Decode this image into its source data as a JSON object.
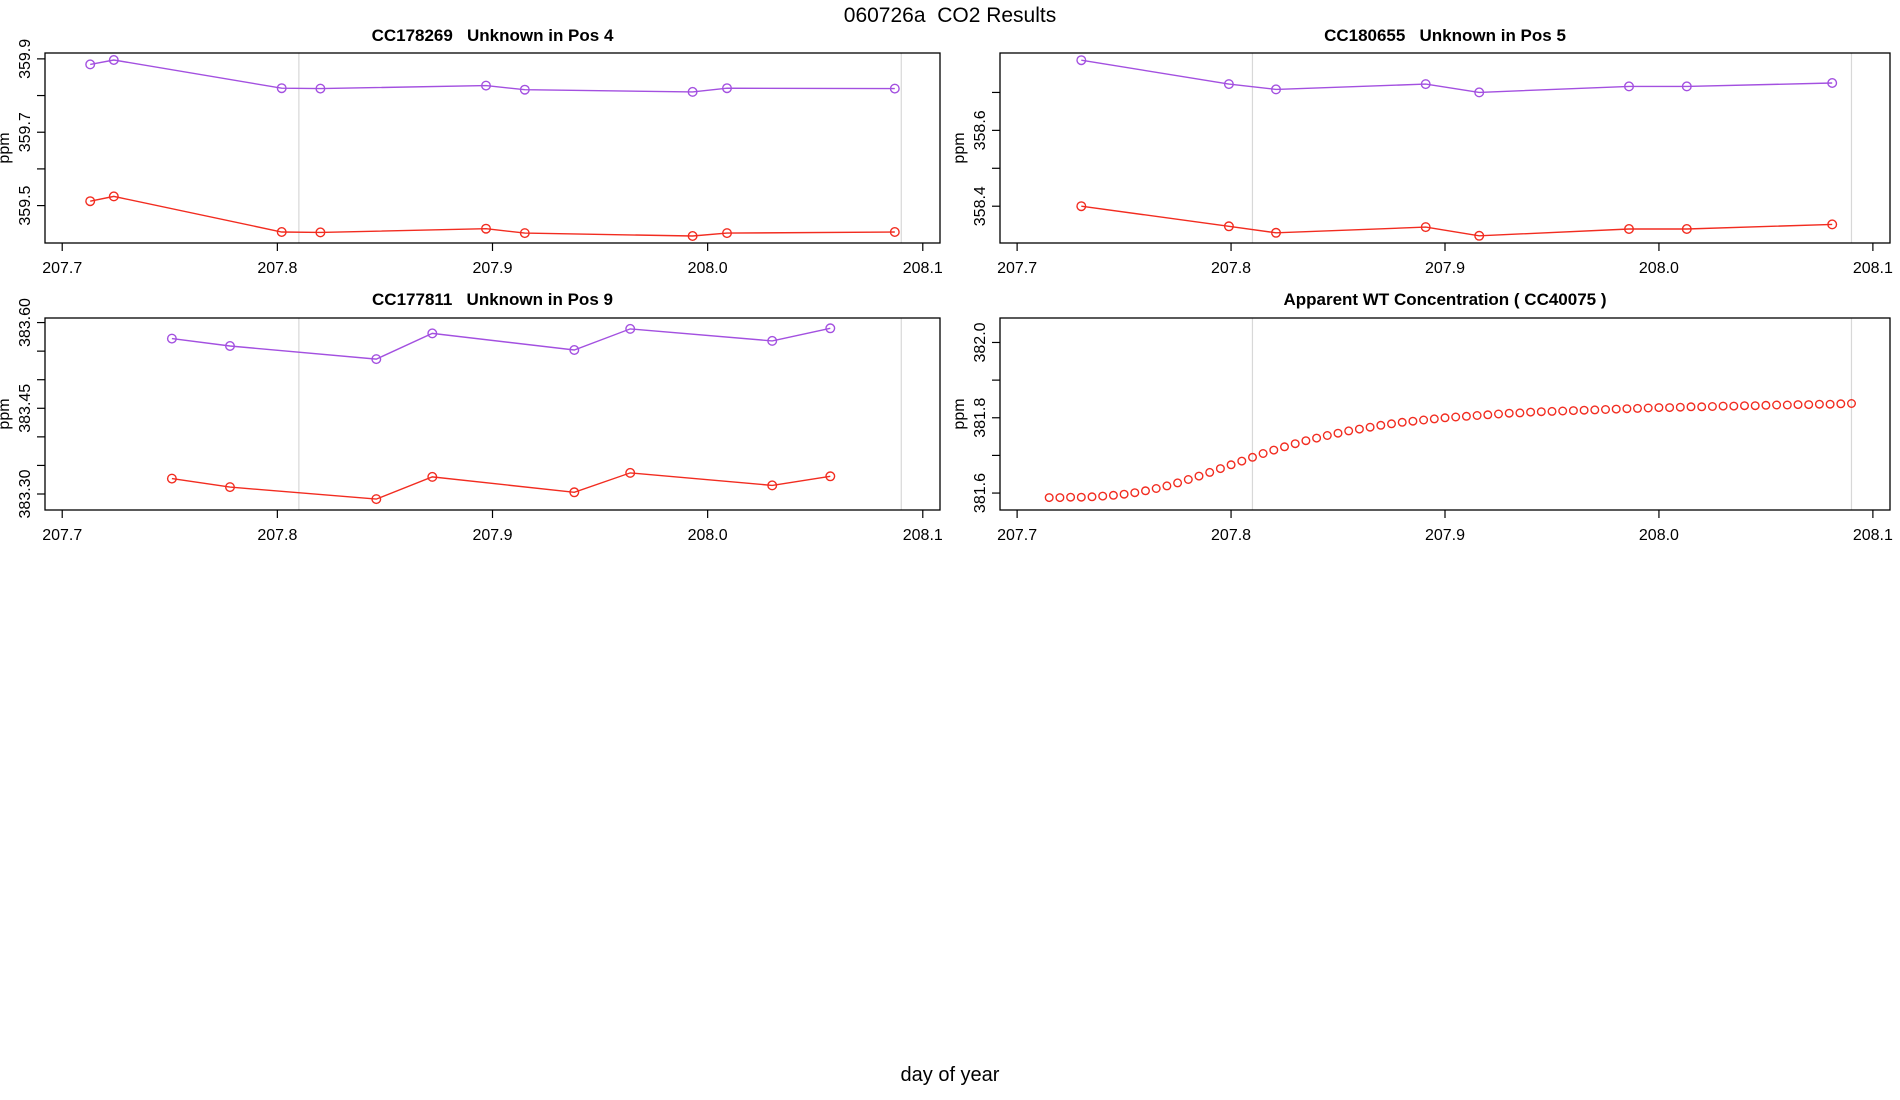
{
  "page_title": "060726a  CO2 Results",
  "xlabel": "day of year",
  "colors": {
    "reference_series": "#a350e0",
    "sample_series": "#f22c20",
    "event_line": "#d8d8d8",
    "axis": "#000000"
  },
  "chart_data": [
    {
      "type": "line",
      "title": "CC178269   Unknown in Pos 4",
      "ylabel": "ppm",
      "xlim": [
        207.692,
        208.108
      ],
      "ylim": [
        359.398,
        359.916
      ],
      "x_ticks": [
        {
          "v": 207.7,
          "label": "207.7"
        },
        {
          "v": 207.8,
          "label": "207.8"
        },
        {
          "v": 207.9,
          "label": "207.9"
        },
        {
          "v": 208.0,
          "label": "208.0"
        },
        {
          "v": 208.1,
          "label": "208.1"
        }
      ],
      "y_ticks": [
        {
          "v": 359.5,
          "label": "359.5"
        },
        {
          "v": 359.6
        },
        {
          "v": 359.7,
          "label": "359.7"
        },
        {
          "v": 359.8
        },
        {
          "v": 359.9,
          "label": "359.9"
        }
      ],
      "event_lines": [
        207.81,
        208.09
      ],
      "series": [
        {
          "color": "#a350e0",
          "draw_line": true,
          "marker": "circle",
          "points": [
            [
              207.713,
              359.885
            ],
            [
              207.724,
              359.897
            ],
            [
              207.802,
              359.82
            ],
            [
              207.82,
              359.819
            ],
            [
              207.897,
              359.827
            ],
            [
              207.915,
              359.816
            ],
            [
              207.993,
              359.81
            ],
            [
              208.009,
              359.82
            ],
            [
              208.087,
              359.819
            ]
          ]
        },
        {
          "color": "#f22c20",
          "draw_line": true,
          "marker": "circle",
          "points": [
            [
              207.713,
              359.512
            ],
            [
              207.724,
              359.525
            ],
            [
              207.802,
              359.428
            ],
            [
              207.82,
              359.427
            ],
            [
              207.897,
              359.437
            ],
            [
              207.915,
              359.425
            ],
            [
              207.993,
              359.417
            ],
            [
              208.009,
              359.425
            ],
            [
              208.087,
              359.428
            ]
          ]
        }
      ]
    },
    {
      "type": "line",
      "title": "CC180655   Unknown in Pos 5",
      "ylabel": "ppm",
      "xlim": [
        207.692,
        208.108
      ],
      "ylim": [
        358.303,
        358.804
      ],
      "x_ticks": [
        {
          "v": 207.7,
          "label": "207.7"
        },
        {
          "v": 207.8,
          "label": "207.8"
        },
        {
          "v": 207.9,
          "label": "207.9"
        },
        {
          "v": 208.0,
          "label": "208.0"
        },
        {
          "v": 208.1,
          "label": "208.1"
        }
      ],
      "y_ticks": [
        {
          "v": 358.4,
          "label": "358.4"
        },
        {
          "v": 358.5
        },
        {
          "v": 358.6,
          "label": "358.6"
        },
        {
          "v": 358.7
        }
      ],
      "event_lines": [
        207.81,
        208.09
      ],
      "series": [
        {
          "color": "#a350e0",
          "draw_line": true,
          "marker": "circle",
          "points": [
            [
              207.73,
              358.785
            ],
            [
              207.799,
              358.722
            ],
            [
              207.821,
              358.708
            ],
            [
              207.891,
              358.722
            ],
            [
              207.916,
              358.7
            ],
            [
              207.986,
              358.716
            ],
            [
              208.013,
              358.716
            ],
            [
              208.081,
              358.725
            ]
          ]
        },
        {
          "color": "#f22c20",
          "draw_line": true,
          "marker": "circle",
          "points": [
            [
              207.73,
              358.4
            ],
            [
              207.799,
              358.347
            ],
            [
              207.821,
              358.33
            ],
            [
              207.891,
              358.345
            ],
            [
              207.916,
              358.322
            ],
            [
              207.986,
              358.34
            ],
            [
              208.013,
              358.34
            ],
            [
              208.081,
              358.352
            ]
          ]
        }
      ]
    },
    {
      "type": "line",
      "title": "CC177811   Unknown in Pos 9",
      "ylabel": "ppm",
      "xlim": [
        207.692,
        208.108
      ],
      "ylim": [
        383.272,
        383.608
      ],
      "x_ticks": [
        {
          "v": 207.7,
          "label": "207.7"
        },
        {
          "v": 207.8,
          "label": "207.8"
        },
        {
          "v": 207.9,
          "label": "207.9"
        },
        {
          "v": 208.0,
          "label": "208.0"
        },
        {
          "v": 208.1,
          "label": "208.1"
        }
      ],
      "y_ticks": [
        {
          "v": 383.3,
          "label": "383.30"
        },
        {
          "v": 383.35
        },
        {
          "v": 383.4
        },
        {
          "v": 383.45,
          "label": "383.45"
        },
        {
          "v": 383.5
        },
        {
          "v": 383.55
        },
        {
          "v": 383.6,
          "label": "383.60"
        }
      ],
      "event_lines": [
        207.81,
        208.09
      ],
      "series": [
        {
          "color": "#a350e0",
          "draw_line": true,
          "marker": "circle",
          "points": [
            [
              207.751,
              383.572
            ],
            [
              207.778,
              383.559
            ],
            [
              207.846,
              383.536
            ],
            [
              207.872,
              383.581
            ],
            [
              207.938,
              383.552
            ],
            [
              207.964,
              383.589
            ],
            [
              208.03,
              383.568
            ],
            [
              208.057,
              383.59
            ]
          ]
        },
        {
          "color": "#f22c20",
          "draw_line": true,
          "marker": "circle",
          "points": [
            [
              207.751,
              383.327
            ],
            [
              207.778,
              383.312
            ],
            [
              207.846,
              383.291
            ],
            [
              207.872,
              383.33
            ],
            [
              207.938,
              383.303
            ],
            [
              207.964,
              383.337
            ],
            [
              208.03,
              383.315
            ],
            [
              208.057,
              383.331
            ]
          ]
        }
      ]
    },
    {
      "type": "scatter",
      "title": "Apparent WT Concentration ( CC40075 )",
      "ylabel": "ppm",
      "xlim": [
        207.692,
        208.108
      ],
      "ylim": [
        381.555,
        382.065
      ],
      "x_ticks": [
        {
          "v": 207.7,
          "label": "207.7"
        },
        {
          "v": 207.8,
          "label": "207.8"
        },
        {
          "v": 207.9,
          "label": "207.9"
        },
        {
          "v": 208.0,
          "label": "208.0"
        },
        {
          "v": 208.1,
          "label": "208.1"
        }
      ],
      "y_ticks": [
        {
          "v": 381.6,
          "label": "381.6"
        },
        {
          "v": 381.7
        },
        {
          "v": 381.8,
          "label": "381.8"
        },
        {
          "v": 381.9
        },
        {
          "v": 382.0,
          "label": "382.0"
        }
      ],
      "event_lines": [
        207.81,
        208.09
      ],
      "series": [
        {
          "color": "#f22c20",
          "draw_line": false,
          "marker": "circle",
          "points": [
            [
              207.715,
              381.588
            ],
            [
              207.72,
              381.588
            ],
            [
              207.725,
              381.589
            ],
            [
              207.73,
              381.589
            ],
            [
              207.735,
              381.59
            ],
            [
              207.74,
              381.592
            ],
            [
              207.745,
              381.594
            ],
            [
              207.75,
              381.597
            ],
            [
              207.755,
              381.601
            ],
            [
              207.76,
              381.606
            ],
            [
              207.765,
              381.612
            ],
            [
              207.77,
              381.619
            ],
            [
              207.775,
              381.627
            ],
            [
              207.78,
              381.636
            ],
            [
              207.785,
              381.645
            ],
            [
              207.79,
              381.655
            ],
            [
              207.795,
              381.665
            ],
            [
              207.8,
              381.675
            ],
            [
              207.805,
              381.685
            ],
            [
              207.81,
              381.695
            ],
            [
              207.815,
              381.705
            ],
            [
              207.82,
              381.714
            ],
            [
              207.825,
              381.723
            ],
            [
              207.83,
              381.731
            ],
            [
              207.835,
              381.739
            ],
            [
              207.84,
              381.746
            ],
            [
              207.845,
              381.753
            ],
            [
              207.85,
              381.759
            ],
            [
              207.855,
              381.765
            ],
            [
              207.86,
              381.77
            ],
            [
              207.865,
              381.775
            ],
            [
              207.87,
              381.78
            ],
            [
              207.875,
              381.784
            ],
            [
              207.88,
              381.788
            ],
            [
              207.885,
              381.791
            ],
            [
              207.89,
              381.794
            ],
            [
              207.895,
              381.797
            ],
            [
              207.9,
              381.8
            ],
            [
              207.905,
              381.802
            ],
            [
              207.91,
              381.804
            ],
            [
              207.915,
              381.806
            ],
            [
              207.92,
              381.808
            ],
            [
              207.925,
              381.81
            ],
            [
              207.93,
              381.812
            ],
            [
              207.935,
              381.813
            ],
            [
              207.94,
              381.815
            ],
            [
              207.945,
              381.816
            ],
            [
              207.95,
              381.817
            ],
            [
              207.955,
              381.818
            ],
            [
              207.96,
              381.819
            ],
            [
              207.965,
              381.82
            ],
            [
              207.97,
              381.821
            ],
            [
              207.975,
              381.822
            ],
            [
              207.98,
              381.823
            ],
            [
              207.985,
              381.824
            ],
            [
              207.99,
              381.825
            ],
            [
              207.995,
              381.826
            ],
            [
              208.0,
              381.827
            ],
            [
              208.005,
              381.827
            ],
            [
              208.01,
              381.828
            ],
            [
              208.015,
              381.829
            ],
            [
              208.02,
              381.829
            ],
            [
              208.025,
              381.83
            ],
            [
              208.03,
              381.831
            ],
            [
              208.035,
              381.831
            ],
            [
              208.04,
              381.832
            ],
            [
              208.045,
              381.832
            ],
            [
              208.05,
              381.833
            ],
            [
              208.055,
              381.834
            ],
            [
              208.06,
              381.834
            ],
            [
              208.065,
              381.835
            ],
            [
              208.07,
              381.835
            ],
            [
              208.075,
              381.836
            ],
            [
              208.08,
              381.836
            ],
            [
              208.085,
              381.837
            ],
            [
              208.09,
              381.838
            ]
          ]
        }
      ]
    }
  ]
}
